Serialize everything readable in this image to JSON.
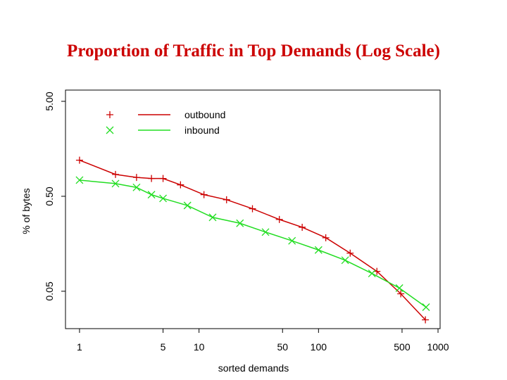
{
  "chart_data": {
    "type": "line",
    "title": "Proportion of Traffic in Top Demands (Log Scale)",
    "x_label": "sorted demands",
    "y_label": "% of bytes",
    "xscale": "log",
    "yscale": "log",
    "xlim": [
      0.763,
      1041
    ],
    "ylim": [
      0.0202,
      6.57
    ],
    "xticks": [
      1,
      5,
      10,
      50,
      100,
      500,
      1000
    ],
    "yticks": [
      {
        "value": 0.05,
        "label": "0.05"
      },
      {
        "value": 0.5,
        "label": "0.50"
      },
      {
        "value": 5,
        "label": "5.00"
      }
    ],
    "legend": "upper left",
    "series": [
      {
        "name": "outbound",
        "color": "#cc0000",
        "marker": "+",
        "x": [
          1,
          2,
          3,
          4,
          5,
          7,
          11,
          17,
          28,
          47,
          73,
          115,
          184,
          308,
          488,
          784
        ],
        "values": [
          1.2,
          0.85,
          0.79,
          0.77,
          0.77,
          0.66,
          0.52,
          0.46,
          0.37,
          0.285,
          0.236,
          0.183,
          0.126,
          0.081,
          0.047,
          0.025
        ]
      },
      {
        "name": "inbound",
        "color": "#22dd22",
        "marker": "x",
        "x": [
          1,
          2,
          3,
          4,
          5,
          8,
          13,
          22,
          36,
          60,
          100,
          167,
          280,
          475,
          794
        ],
        "values": [
          0.74,
          0.68,
          0.62,
          0.52,
          0.475,
          0.4,
          0.3,
          0.26,
          0.21,
          0.17,
          0.136,
          0.106,
          0.077,
          0.054,
          0.034
        ]
      }
    ]
  }
}
